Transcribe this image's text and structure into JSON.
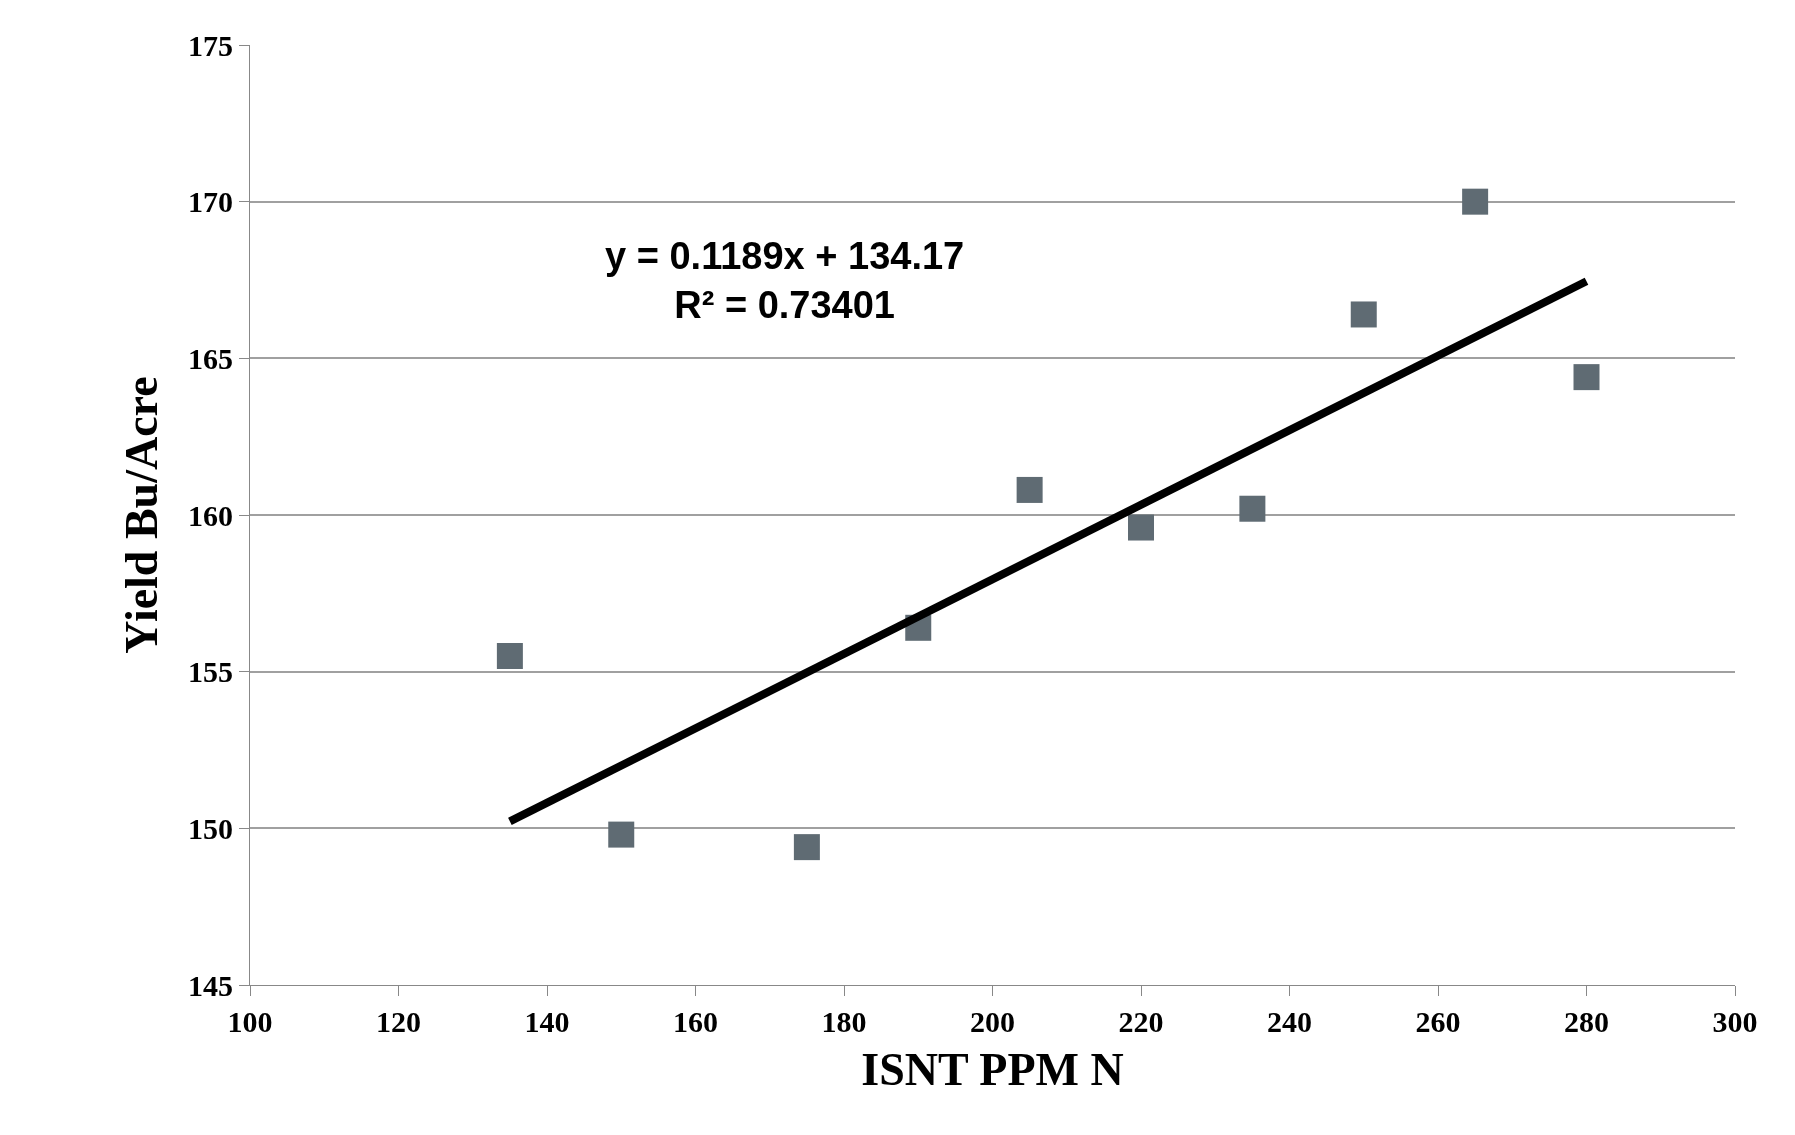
{
  "chart_data": {
    "type": "scatter",
    "xlabel": "ISNT PPM N",
    "ylabel": "Yield Bu/Acre",
    "x": [
      135,
      150,
      175,
      190,
      205,
      220,
      235,
      250,
      265,
      280
    ],
    "series": [
      {
        "color": "#5f6b73",
        "marker": "square",
        "values": [
          155.5,
          149.8,
          149.4,
          156.4,
          160.8,
          159.6,
          160.2,
          166.4,
          170.0,
          164.4
        ]
      },
      {
        "type": "line",
        "color": "#000000",
        "x": [
          135,
          280
        ],
        "values": [
          150.22,
          167.46
        ]
      }
    ],
    "annotations": [
      "y = 0.1189x + 134.17\nR² = 0.73401"
    ],
    "xlim": [
      100,
      300
    ],
    "xticks": [
      100,
      120,
      140,
      160,
      180,
      200,
      220,
      240,
      260,
      280,
      300
    ],
    "ylim": [
      145,
      175
    ],
    "yticks": [
      145,
      150,
      155,
      160,
      165,
      170,
      175
    ],
    "grid": "y"
  }
}
